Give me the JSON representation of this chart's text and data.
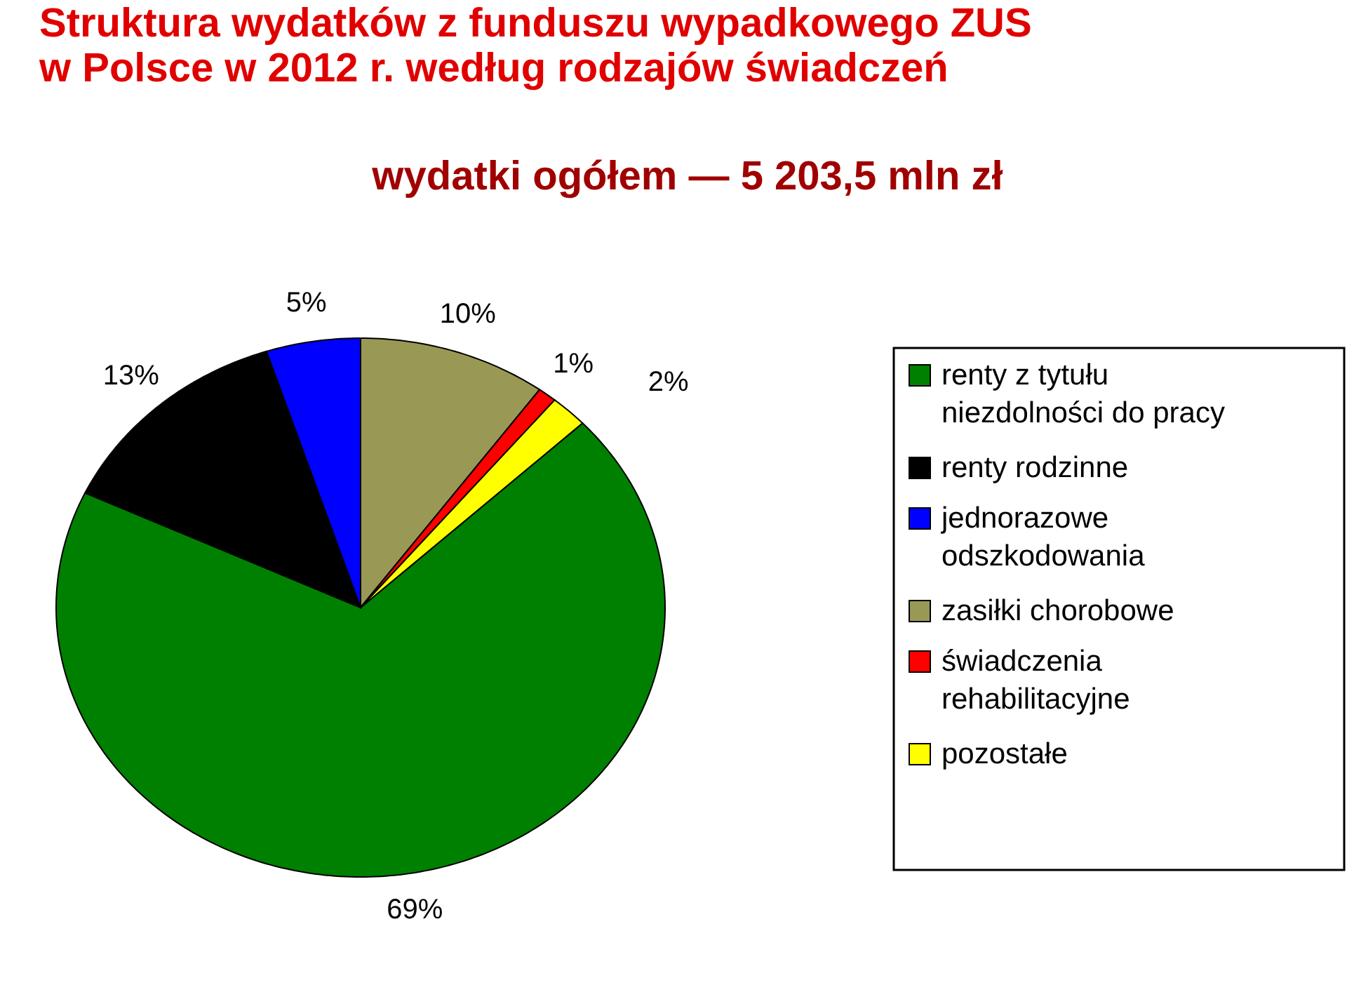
{
  "chart_data": {
    "type": "pie",
    "title": "Struktura wydatków z funduszu wypadkowego ZUS w Polsce w 2012 r. według rodzajów świadczeń",
    "subtitle": "wydatki ogółem — 5 203,5 mln zł",
    "categories": [
      "renty z tytułu niezdolności do pracy",
      "renty rodzinne",
      "jednorazowe odszkodowania",
      "zasiłki chorobowe",
      "świadczenia rehabilitacyjne",
      "pozostałe"
    ],
    "values": [
      69,
      13,
      5,
      10,
      1,
      2
    ],
    "colors": [
      "#008000",
      "#000000",
      "#0000ff",
      "#999955",
      "#ff0000",
      "#ffff00"
    ],
    "value_labels": [
      "69%",
      "13%",
      "5%",
      "10%",
      "1%",
      "2%"
    ],
    "legend": "right"
  }
}
